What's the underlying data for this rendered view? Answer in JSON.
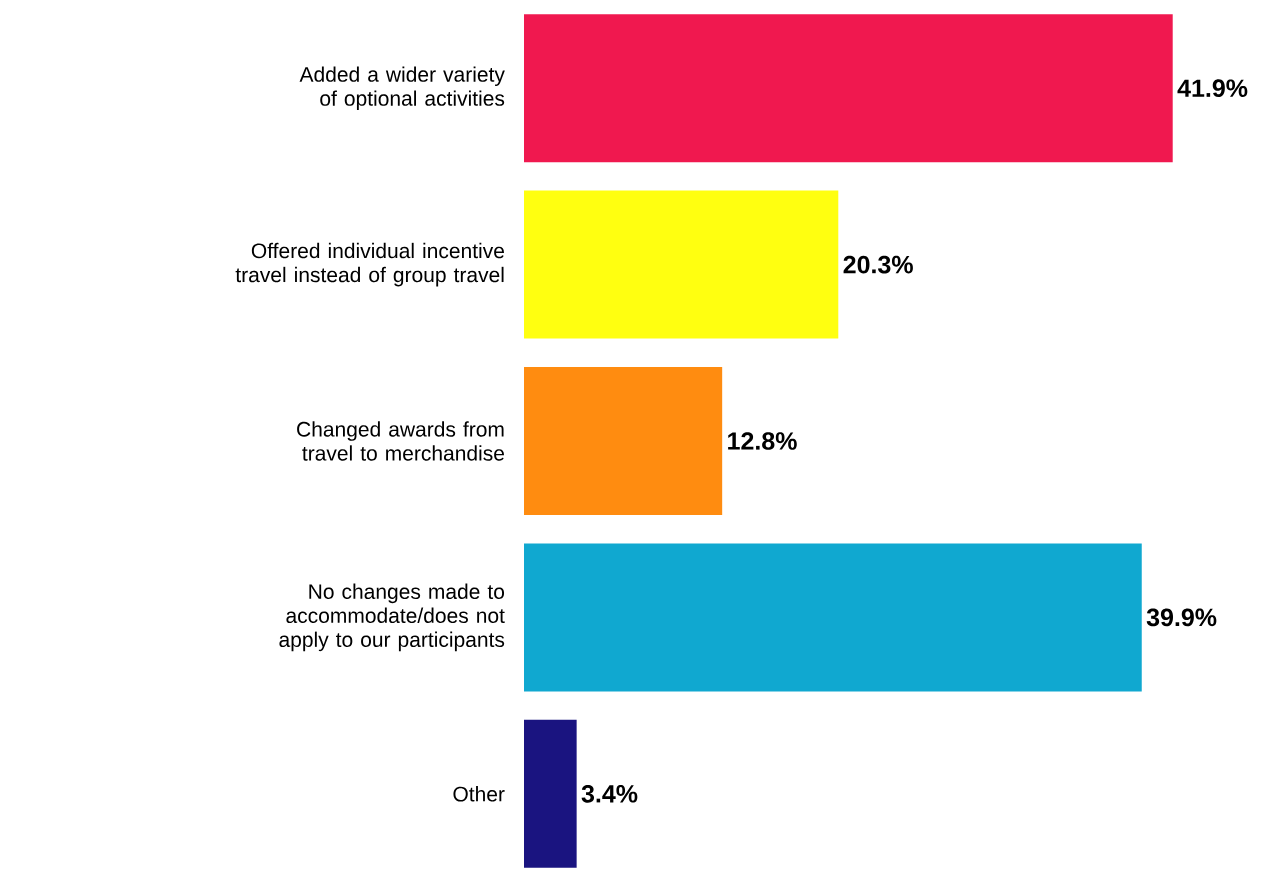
{
  "chart_data": {
    "type": "bar",
    "orientation": "horizontal",
    "categories": [
      "Added a wider variety of optional activities",
      "Offered individual incentive travel instead of group travel",
      "Changed awards from travel to merchandise",
      "No changes made to accommodate/does not apply to our participants",
      "Other"
    ],
    "values": [
      41.9,
      20.3,
      12.8,
      39.9,
      3.4
    ],
    "colors": [
      "#f0184f",
      "#ffff10",
      "#ff8c10",
      "#10a8d0",
      "#1a1480"
    ],
    "value_labels": [
      "41.9%",
      "20.3%",
      "12.8%",
      "39.9%",
      "3.4%"
    ],
    "tick_labels": "y"
  }
}
